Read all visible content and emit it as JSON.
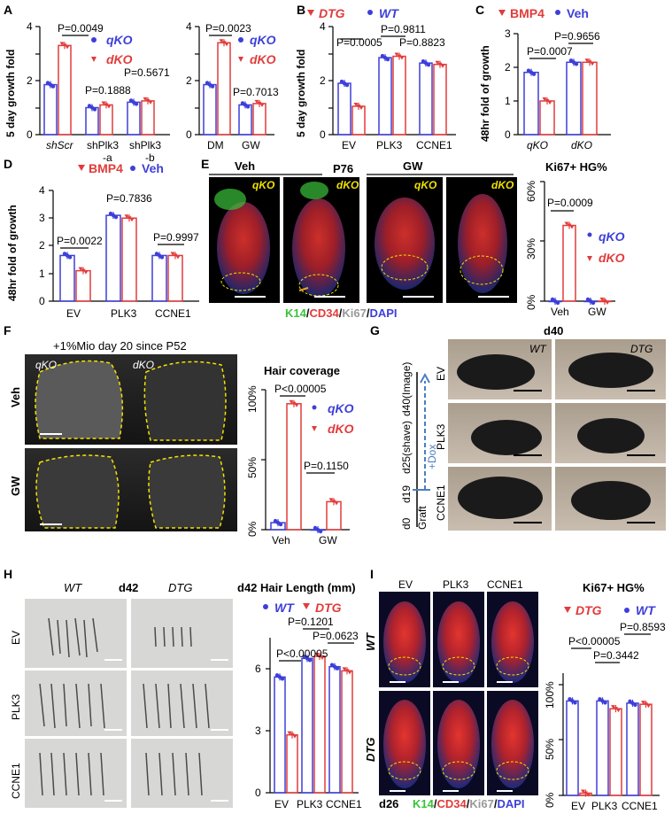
{
  "colors": {
    "blue": "#3d3fd9",
    "red": "#e23b3b",
    "green": "#3ac23a",
    "yellow": "#f2e200"
  },
  "panels": {
    "A": {
      "label": "A",
      "ylabel": "5 day growth fold",
      "legend1": "qKO",
      "legend2": "dKO",
      "legend3": "qKO",
      "legend4": "dKO",
      "p1": "P=0.0049",
      "p2": "P=0.1888",
      "p3": "P=0.5671",
      "p4": "P=0.0023",
      "p5": "P=0.7013",
      "xt1": "shScr",
      "xt2a": "shPlk3",
      "xt2b": "-a",
      "xt3a": "shPlk3",
      "xt3b": "-b",
      "xt4": "DM",
      "xt5": "GW"
    },
    "B": {
      "label": "B",
      "ylabel": "5 day growth fold",
      "legend1": "DTG",
      "legend2": "WT",
      "p1": "P=0.0005",
      "p2": "P=0.9811",
      "p3": "P=0.8823",
      "xt1": "EV",
      "xt2": "PLK3",
      "xt3": "CCNE1"
    },
    "C": {
      "label": "C",
      "ylabel": "48hr fold of growth",
      "legend1": "BMP4",
      "legend2": "Veh",
      "p1": "P=0.0007",
      "p2": "P=0.9656",
      "xt1": "qKO",
      "xt2": "dKO"
    },
    "D": {
      "label": "D",
      "ylabel": "48hr fold of growth",
      "legend1": "BMP4",
      "legend2": "Veh",
      "p1": "P=0.0022",
      "p2": "P=0.7836",
      "p3": "P=0.9997",
      "xt1": "EV",
      "xt2": "PLK3",
      "xt3": "CCNE1"
    },
    "E": {
      "label": "E",
      "veh": "Veh",
      "p76": "P76",
      "gw": "GW",
      "qko": "qKO",
      "dko": "dKO",
      "stain_k14": "K14",
      "stain_cd34": "CD34",
      "stain_ki67": "Ki67",
      "stain_dapi": "DAPI",
      "chart_title": "Ki67+ HG%",
      "p1": "P=0.0009",
      "legend1": "qKO",
      "legend2": "dKO",
      "xt1": "Veh",
      "xt2": "GW"
    },
    "F": {
      "label": "F",
      "title": "+1%Mio day 20 since P52",
      "qko": "qKO",
      "dko": "dKO",
      "row1": "Veh",
      "row2": "GW",
      "chart_title": "Hair coverage",
      "p1": "P<0.00005",
      "p2": "P=0.1150",
      "legend1": "qKO",
      "legend2": "dKO",
      "xt1": "Veh",
      "xt2": "GW"
    },
    "G": {
      "label": "G",
      "title": "d40",
      "wt": "WT",
      "dtg": "DTG",
      "row1": "EV",
      "row2": "PLK3",
      "row3": "CCNE1",
      "tl_d0": "d0",
      "tl_d19": "d19",
      "tl_d25": "d25(shave)",
      "tl_d40": "d40(Image)",
      "tl_graft": "Graft",
      "tl_dox": "+Dox"
    },
    "H": {
      "label": "H",
      "wt": "WT",
      "d42": "d42",
      "dtg": "DTG",
      "row1": "EV",
      "row2": "PLK3",
      "row3": "CCNE1",
      "chart_title": "d42 Hair Length (mm)",
      "legend1": "WT",
      "legend2": "DTG",
      "p1": "P=0.1201",
      "p2": "P=0.0623",
      "p3": "P<0.00005",
      "xt1": "EV",
      "xt2": "PLK3",
      "xt3": "CCNE1"
    },
    "I": {
      "label": "I",
      "col1": "EV",
      "col2": "PLK3",
      "col3": "CCNE1",
      "row1": "WT",
      "row2": "DTG",
      "d26": "d26",
      "stain_k14": "K14",
      "stain_cd34": "CD34",
      "stain_ki67": "Ki67",
      "stain_dapi": "DAPI",
      "chart_title": "Ki67+ HG%",
      "legend1": "DTG",
      "legend2": "WT",
      "p1": "P=0.8593",
      "p2": "P<0.00005",
      "p3": "P=0.3442",
      "xt1": "EV",
      "xt2": "PLK3",
      "xt3": "CCNE1"
    }
  },
  "chart_data": [
    {
      "id": "A-left",
      "type": "bar",
      "categories": [
        "shScr",
        "shPlk3-a",
        "shPlk3-b"
      ],
      "ylim": [
        0,
        4
      ],
      "series": [
        {
          "name": "qKO",
          "values": [
            1.85,
            1.0,
            1.2
          ]
        },
        {
          "name": "dKO",
          "values": [
            3.3,
            1.1,
            1.25
          ]
        }
      ]
    },
    {
      "id": "A-right",
      "type": "bar",
      "categories": [
        "DM",
        "GW"
      ],
      "ylim": [
        0,
        4
      ],
      "series": [
        {
          "name": "qKO",
          "values": [
            1.85,
            1.1
          ]
        },
        {
          "name": "dKO",
          "values": [
            3.4,
            1.15
          ]
        }
      ]
    },
    {
      "id": "B",
      "type": "bar",
      "categories": [
        "EV",
        "PLK3",
        "CCNE1"
      ],
      "ylim": [
        0,
        4
      ],
      "series": [
        {
          "name": "WT",
          "values": [
            1.9,
            2.85,
            2.65
          ]
        },
        {
          "name": "DTG",
          "values": [
            1.05,
            2.9,
            2.6
          ]
        }
      ]
    },
    {
      "id": "C",
      "type": "bar",
      "categories": [
        "qKO",
        "dKO"
      ],
      "ylim": [
        0,
        3
      ],
      "series": [
        {
          "name": "Veh",
          "values": [
            1.85,
            2.15
          ]
        },
        {
          "name": "BMP4",
          "values": [
            1.0,
            2.15
          ]
        }
      ]
    },
    {
      "id": "D",
      "type": "bar",
      "categories": [
        "EV",
        "PLK3",
        "CCNE1"
      ],
      "ylim": [
        0,
        4
      ],
      "series": [
        {
          "name": "Veh",
          "values": [
            1.65,
            3.1,
            1.65
          ]
        },
        {
          "name": "BMP4",
          "values": [
            1.1,
            3.0,
            1.65
          ]
        }
      ]
    },
    {
      "id": "E",
      "type": "bar",
      "categories": [
        "Veh",
        "GW"
      ],
      "ylim": [
        0,
        60
      ],
      "series": [
        {
          "name": "qKO",
          "values": [
            0,
            0
          ]
        },
        {
          "name": "dKO",
          "values": [
            38,
            0
          ]
        }
      ]
    },
    {
      "id": "F",
      "type": "bar",
      "categories": [
        "Veh",
        "GW"
      ],
      "ylim": [
        0,
        100
      ],
      "series": [
        {
          "name": "qKO",
          "values": [
            5,
            0
          ]
        },
        {
          "name": "dKO",
          "values": [
            90,
            20
          ]
        }
      ]
    },
    {
      "id": "H",
      "type": "bar",
      "categories": [
        "EV",
        "PLK3",
        "CCNE1"
      ],
      "ylim": [
        0,
        7.5
      ],
      "series": [
        {
          "name": "WT",
          "values": [
            5.6,
            6.5,
            6.1
          ]
        },
        {
          "name": "DTG",
          "values": [
            2.8,
            6.6,
            5.9
          ]
        }
      ]
    },
    {
      "id": "I",
      "type": "bar",
      "categories": [
        "EV",
        "PLK3",
        "CCNE1"
      ],
      "ylim": [
        0,
        110
      ],
      "series": [
        {
          "name": "WT",
          "values": [
            85,
            85,
            83
          ]
        },
        {
          "name": "DTG",
          "values": [
            2,
            78,
            82
          ]
        }
      ]
    }
  ]
}
